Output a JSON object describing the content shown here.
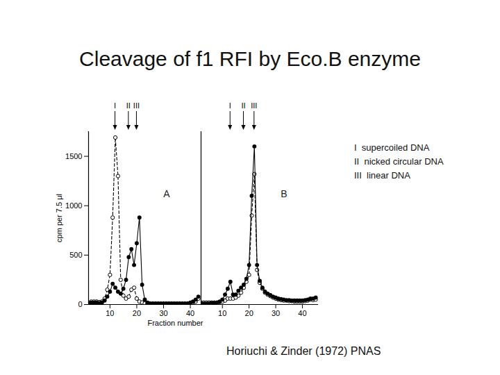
{
  "title": "Cleavage of f1 RFI by Eco.B enzyme",
  "key": [
    "I  supercoiled DNA",
    "II  nicked circular DNA",
    "III  linear DNA"
  ],
  "source": "Horiuchi & Zinder (1972) PNAS",
  "chart_data": [
    {
      "type": "line",
      "panel_label": "A",
      "x_label": "Fraction number",
      "y_label": "cpm per 7.5 μl",
      "xlim": [
        2,
        44
      ],
      "xticks": [
        10,
        20,
        30,
        40
      ],
      "ylim": [
        0,
        1750
      ],
      "yticks": [
        0,
        500,
        1000,
        1500
      ],
      "markers": [
        {
          "label": "I",
          "x": 12
        },
        {
          "label": "II",
          "x": 17
        },
        {
          "label": "III",
          "x": 20
        }
      ],
      "x": [
        2,
        3,
        4,
        5,
        6,
        7,
        8,
        9,
        10,
        11,
        12,
        13,
        14,
        15,
        16,
        17,
        18,
        19,
        20,
        21,
        22,
        23,
        24,
        25,
        26,
        27,
        28,
        29,
        30,
        31,
        32,
        33,
        34,
        35,
        36,
        37,
        38,
        39,
        40,
        41,
        42,
        43
      ],
      "series": [
        {
          "color": "#000000",
          "marker": "circle_open",
          "line_style": "dashed",
          "values": [
            20,
            30,
            30,
            30,
            25,
            30,
            60,
            150,
            300,
            880,
            1690,
            1300,
            250,
            90,
            60,
            80,
            150,
            170,
            60,
            30,
            20,
            10,
            10,
            10,
            10,
            10,
            10,
            10,
            10,
            10,
            10,
            10,
            10,
            10,
            10,
            10,
            10,
            10,
            10,
            20,
            30,
            60
          ]
        },
        {
          "color": "#000000",
          "marker": "circle_filled",
          "line_style": "solid",
          "values": [
            10,
            20,
            20,
            20,
            15,
            20,
            40,
            80,
            130,
            210,
            170,
            130,
            110,
            160,
            250,
            480,
            560,
            400,
            620,
            880,
            200,
            50,
            20,
            10,
            10,
            10,
            10,
            10,
            10,
            10,
            10,
            10,
            10,
            10,
            10,
            10,
            10,
            10,
            20,
            30,
            50,
            80
          ]
        }
      ]
    },
    {
      "type": "line",
      "panel_label": "B",
      "tick_labels": "x",
      "xlim": [
        2,
        46
      ],
      "xticks": [
        10,
        20,
        30,
        40
      ],
      "ylim": [
        0,
        1750
      ],
      "markers": [
        {
          "label": "I",
          "x": 13
        },
        {
          "label": "II",
          "x": 18
        },
        {
          "label": "III",
          "x": 22
        }
      ],
      "x": [
        2,
        3,
        4,
        5,
        6,
        7,
        8,
        9,
        10,
        11,
        12,
        13,
        14,
        15,
        16,
        17,
        18,
        19,
        20,
        21,
        22,
        23,
        24,
        25,
        26,
        27,
        28,
        29,
        30,
        31,
        32,
        33,
        34,
        35,
        36,
        37,
        38,
        39,
        40,
        41,
        42,
        43,
        44,
        45
      ],
      "series": [
        {
          "color": "#000000",
          "marker": "circle_open",
          "line_style": "dashed",
          "values": [
            20,
            20,
            20,
            20,
            20,
            20,
            20,
            25,
            30,
            40,
            60,
            60,
            60,
            70,
            90,
            120,
            170,
            230,
            300,
            900,
            1320,
            350,
            220,
            160,
            120,
            100,
            85,
            70,
            60,
            50,
            45,
            40,
            40,
            35,
            35,
            30,
            30,
            30,
            30,
            35,
            40,
            50,
            45,
            50
          ]
        },
        {
          "color": "#000000",
          "marker": "circle_filled",
          "line_style": "solid",
          "values": [
            10,
            10,
            10,
            10,
            15,
            15,
            20,
            30,
            50,
            100,
            160,
            230,
            100,
            100,
            140,
            170,
            200,
            260,
            400,
            1100,
            1600,
            400,
            240,
            170,
            130,
            110,
            95,
            80,
            70,
            60,
            55,
            50,
            45,
            45,
            40,
            40,
            40,
            40,
            40,
            45,
            50,
            60,
            60,
            70
          ]
        }
      ]
    }
  ]
}
